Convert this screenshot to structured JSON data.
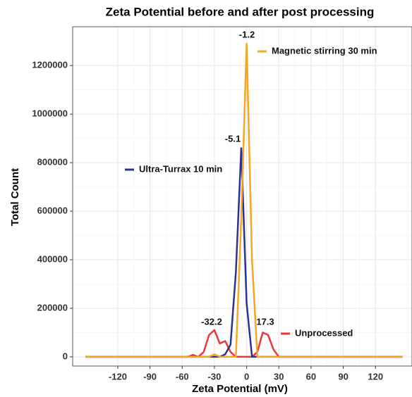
{
  "chart_data": {
    "type": "line",
    "title": "Zeta Potential before and after post processing",
    "x_label": "Zeta Potential (mV)",
    "y_label": "Total Count",
    "x": [
      -150,
      -140,
      -130,
      -120,
      -110,
      -100,
      -90,
      -80,
      -70,
      -60,
      -55,
      -50,
      -45,
      -40,
      -35,
      -30,
      -25,
      -20,
      -15,
      -10,
      -5,
      0,
      5,
      10,
      15,
      20,
      25,
      30,
      40,
      50,
      60,
      70,
      80,
      90,
      100,
      110,
      120,
      130,
      140,
      145
    ],
    "series": [
      {
        "name": "Unprocessed",
        "color": "#e8383d",
        "values": [
          0,
          0,
          0,
          0,
          0,
          0,
          0,
          0,
          0,
          0,
          0,
          8000,
          0,
          20000,
          90000,
          110000,
          55000,
          65000,
          20000,
          0,
          0,
          0,
          0,
          20000,
          100000,
          90000,
          30000,
          0,
          0,
          0,
          0,
          0,
          0,
          0,
          0,
          0,
          0,
          0,
          0,
          0
        ]
      },
      {
        "name": "Ultra-Turrax 10 min",
        "color": "#2e3192",
        "values": [
          0,
          0,
          0,
          0,
          0,
          0,
          0,
          0,
          0,
          0,
          0,
          0,
          0,
          0,
          0,
          0,
          0,
          10000,
          50000,
          350000,
          860000,
          220000,
          0,
          0,
          0,
          0,
          0,
          0,
          0,
          0,
          0,
          0,
          0,
          0,
          0,
          0,
          0,
          0,
          0,
          0
        ]
      },
      {
        "name": "Magnetic stirring 30 min",
        "color": "#f5a623",
        "values": [
          0,
          0,
          0,
          0,
          0,
          0,
          0,
          0,
          0,
          0,
          0,
          0,
          0,
          0,
          0,
          10000,
          0,
          0,
          0,
          0,
          570000,
          1290000,
          400000,
          0,
          0,
          0,
          0,
          0,
          0,
          0,
          0,
          0,
          0,
          0,
          0,
          0,
          0,
          0,
          0,
          0
        ]
      }
    ],
    "annotations": [
      "-1.2",
      "-5.1",
      "-32.2",
      "17.3"
    ],
    "xlim": [
      -162,
      154
    ],
    "ylim": [
      -38000,
      1360000
    ],
    "xticks": [
      -120,
      -90,
      -60,
      -30,
      0,
      30,
      60,
      90,
      120
    ],
    "yticks": [
      0,
      200000,
      400000,
      600000,
      800000,
      1000000,
      1200000
    ],
    "grid": true
  }
}
